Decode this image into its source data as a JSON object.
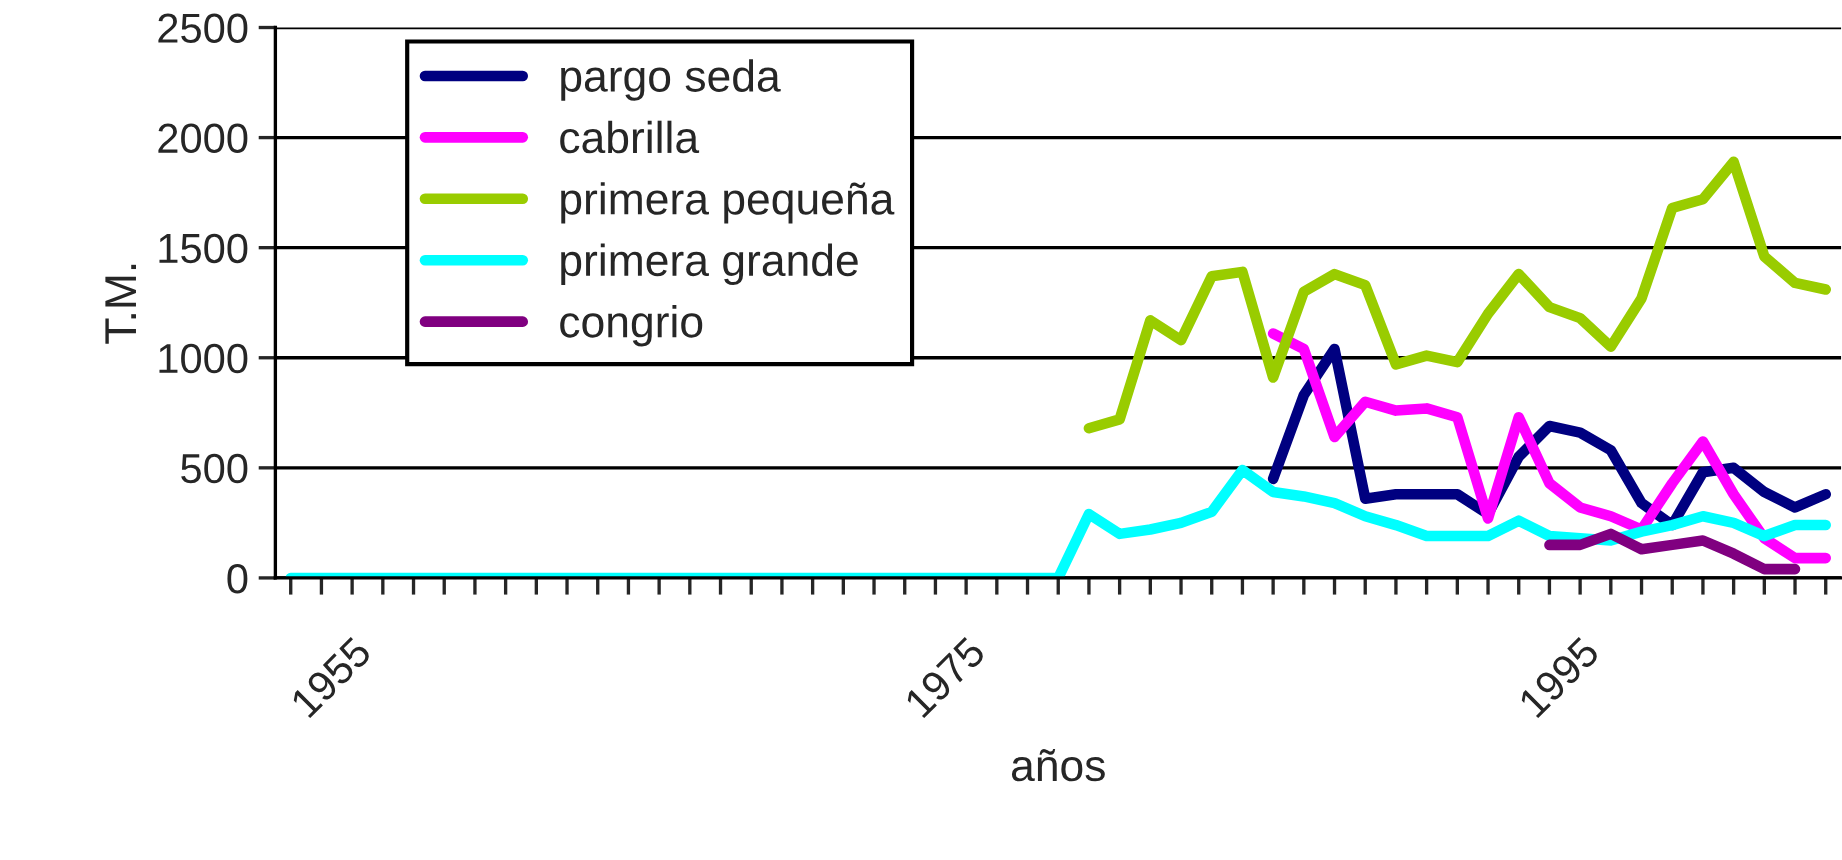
{
  "chart_data": {
    "type": "line",
    "xlabel": "años",
    "ylabel": "T.M.",
    "categories": [
      null,
      null,
      "1955",
      null,
      null,
      null,
      null,
      null,
      null,
      null,
      null,
      null,
      null,
      null,
      null,
      null,
      null,
      null,
      null,
      null,
      null,
      null,
      "1975",
      null,
      null,
      null,
      null,
      null,
      null,
      null,
      null,
      null,
      null,
      null,
      null,
      null,
      null,
      null,
      null,
      null,
      null,
      null,
      "1995",
      null,
      null,
      null,
      null,
      null,
      null,
      null,
      null
    ],
    "ylim": [
      0,
      2500
    ],
    "yticks": [
      0,
      500,
      1000,
      1500,
      2000,
      2500
    ],
    "grid": "y",
    "legend": "top left",
    "marker": "none",
    "line_style": "solid",
    "series": [
      {
        "name": "pargo seda",
        "color": "#000080",
        "values": [
          null,
          null,
          null,
          null,
          null,
          null,
          null,
          null,
          null,
          null,
          null,
          null,
          null,
          null,
          null,
          null,
          null,
          null,
          null,
          null,
          null,
          null,
          null,
          null,
          null,
          null,
          null,
          null,
          null,
          null,
          null,
          null,
          450,
          830,
          1040,
          360,
          380,
          380,
          380,
          290,
          550,
          690,
          660,
          580,
          340,
          240,
          480,
          500,
          390,
          320,
          380
        ]
      },
      {
        "name": "cabrilla",
        "color": "#ff00ff",
        "values": [
          null,
          null,
          null,
          null,
          null,
          null,
          null,
          null,
          null,
          null,
          null,
          null,
          null,
          null,
          null,
          null,
          null,
          null,
          null,
          null,
          null,
          null,
          null,
          null,
          null,
          null,
          null,
          null,
          null,
          null,
          null,
          null,
          1110,
          1040,
          640,
          800,
          760,
          770,
          730,
          270,
          730,
          430,
          320,
          280,
          220,
          430,
          620,
          380,
          180,
          90,
          90
        ]
      },
      {
        "name": "primera pequeña",
        "color": "#99cc00",
        "values": [
          null,
          null,
          null,
          null,
          null,
          null,
          null,
          null,
          null,
          null,
          null,
          null,
          null,
          null,
          null,
          null,
          null,
          null,
          null,
          null,
          null,
          null,
          null,
          null,
          null,
          null,
          680,
          720,
          1170,
          1080,
          1370,
          1390,
          910,
          1300,
          1380,
          1330,
          970,
          1010,
          980,
          1200,
          1380,
          1230,
          1180,
          1050,
          1270,
          1680,
          1720,
          1890,
          1460,
          1340,
          1310
        ]
      },
      {
        "name": "primera grande",
        "color": "#00ffff",
        "values": [
          0,
          0,
          0,
          0,
          0,
          0,
          0,
          0,
          0,
          0,
          0,
          0,
          0,
          0,
          0,
          0,
          0,
          0,
          0,
          0,
          0,
          0,
          0,
          0,
          0,
          0,
          290,
          200,
          220,
          250,
          300,
          490,
          390,
          370,
          340,
          280,
          240,
          190,
          190,
          190,
          260,
          190,
          180,
          170,
          210,
          240,
          280,
          250,
          190,
          240,
          240
        ]
      },
      {
        "name": "congrio",
        "color": "#800080",
        "values": [
          null,
          null,
          null,
          null,
          null,
          null,
          null,
          null,
          null,
          null,
          null,
          null,
          null,
          null,
          null,
          null,
          null,
          null,
          null,
          null,
          null,
          null,
          null,
          null,
          null,
          null,
          null,
          null,
          null,
          null,
          null,
          null,
          null,
          null,
          null,
          null,
          null,
          null,
          null,
          null,
          null,
          150,
          150,
          200,
          130,
          150,
          170,
          110,
          40,
          40,
          null
        ]
      }
    ]
  }
}
